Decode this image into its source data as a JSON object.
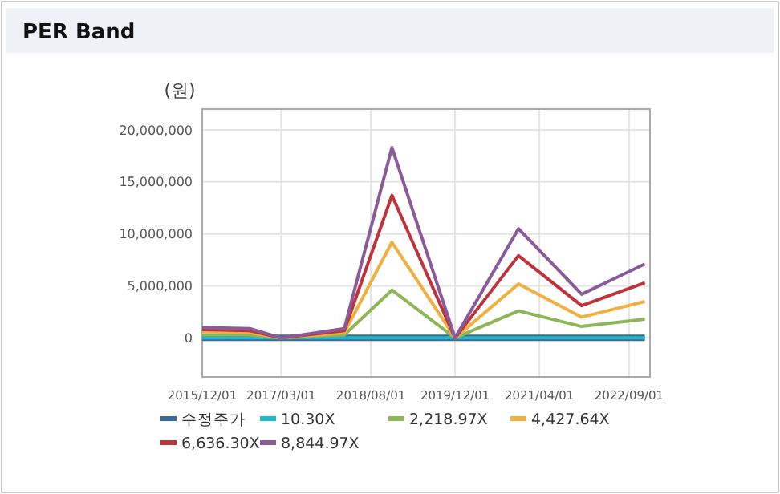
{
  "chart_data": {
    "type": "line",
    "title": "PER Band",
    "ylabel": "(원)",
    "x": [
      "2015-12-01",
      "2016-09-01",
      "2017-03-01",
      "2018-03-01",
      "2018-12-01",
      "2019-12-01",
      "2020-12-01",
      "2021-12-01",
      "2022-12-01"
    ],
    "series": [
      {
        "name": "수정주가",
        "color": "#3a6a9a",
        "values": [
          0,
          0,
          0,
          0,
          0,
          0,
          0,
          0,
          0
        ]
      },
      {
        "name": "10.30X",
        "color": "#1fb8c8",
        "values": [
          0,
          0,
          0,
          0,
          0,
          0,
          0,
          0,
          0
        ]
      },
      {
        "name": "2,218.97X",
        "color": "#8db656",
        "values": [
          300000,
          300000,
          0,
          300000,
          4600000,
          0,
          2600000,
          1100000,
          1800000
        ]
      },
      {
        "name": "4,427.64X",
        "color": "#f0b040",
        "values": [
          600000,
          500000,
          0,
          500000,
          9200000,
          0,
          5200000,
          2000000,
          3500000
        ]
      },
      {
        "name": "6,636.30X",
        "color": "#c0333a",
        "values": [
          800000,
          700000,
          0,
          700000,
          13700000,
          0,
          7900000,
          3100000,
          5300000
        ]
      },
      {
        "name": "8,844.97X",
        "color": "#8a5a9a",
        "values": [
          1000000,
          900000,
          0,
          900000,
          18300000,
          0,
          10500000,
          4200000,
          7100000
        ]
      }
    ],
    "xlim": [
      "2015-12-01",
      "2022-12-31"
    ],
    "xticks": [
      {
        "value": "2015-12-01",
        "label": "2015/12/01"
      },
      {
        "value": "2017-03-01",
        "label": "2017/03/01"
      },
      {
        "value": "2018-08-01",
        "label": "2018/08/01"
      },
      {
        "value": "2019-12-01",
        "label": "2019/12/01"
      },
      {
        "value": "2021-04-01",
        "label": "2021/04/01"
      },
      {
        "value": "2022-09-01",
        "label": "2022/09/01"
      }
    ],
    "ylim": [
      -3750000,
      22000000
    ],
    "yticks": [
      {
        "value": 0,
        "label": "0"
      },
      {
        "value": 5000000,
        "label": "5,000,000"
      },
      {
        "value": 10000000,
        "label": "10,000,000"
      },
      {
        "value": 15000000,
        "label": "15,000,000"
      },
      {
        "value": 20000000,
        "label": "20,000,000"
      }
    ],
    "grid": true,
    "legend": "bottom",
    "marker": "none",
    "line_style": "solid"
  }
}
